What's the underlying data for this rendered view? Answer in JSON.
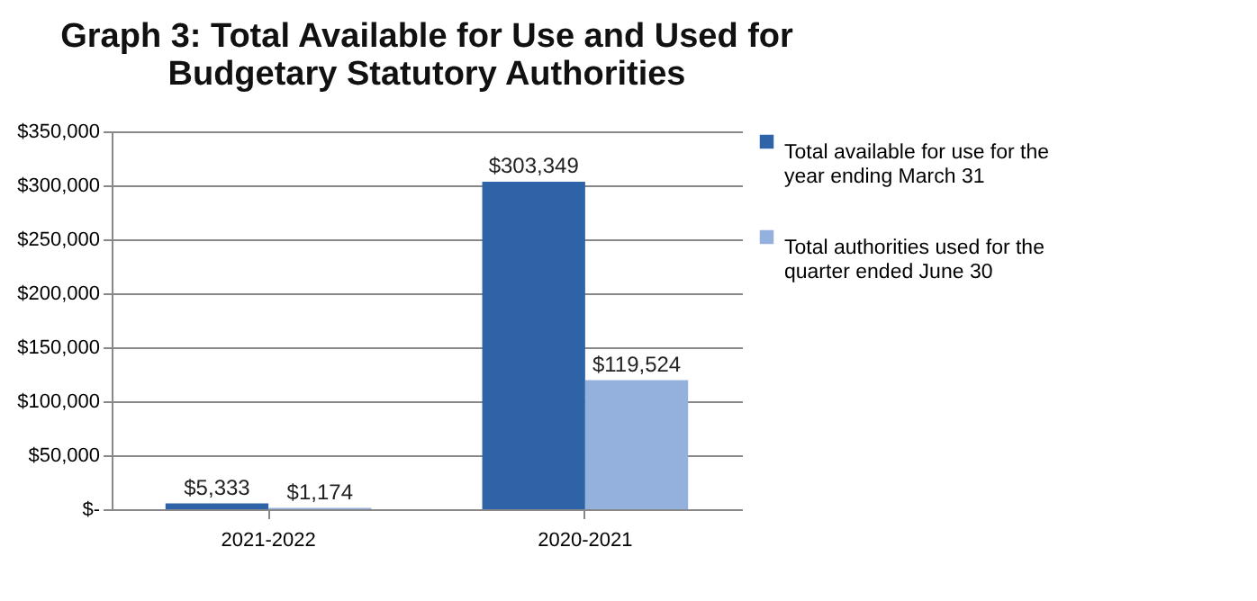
{
  "chart_data": {
    "type": "bar",
    "title": "Graph 3: Total Available for Use and Used for Budgetary Statutory Authorities",
    "categories": [
      "2021-2022",
      "2020-2021"
    ],
    "series": [
      {
        "name": "Total available for use for the year ending March 31",
        "color": "#2f63a8",
        "values": [
          5333,
          303349
        ],
        "value_labels": [
          "$5,333",
          "$303,349"
        ]
      },
      {
        "name": "Total authorities used for the quarter ended June 30",
        "color": "#93b1dc",
        "values": [
          1174,
          119524
        ],
        "value_labels": [
          "$1,174",
          "$119,524"
        ]
      }
    ],
    "ylim": [
      0,
      350000
    ],
    "yticks": [
      {
        "value": 0,
        "label": "$-"
      },
      {
        "value": 50000,
        "label": "$50,000"
      },
      {
        "value": 100000,
        "label": "$100,000"
      },
      {
        "value": 150000,
        "label": "$150,000"
      },
      {
        "value": 200000,
        "label": "$200,000"
      },
      {
        "value": 250000,
        "label": "$250,000"
      },
      {
        "value": 300000,
        "label": "$300,000"
      },
      {
        "value": 350000,
        "label": "$350,000"
      }
    ],
    "grid": "y",
    "legend": "right"
  }
}
